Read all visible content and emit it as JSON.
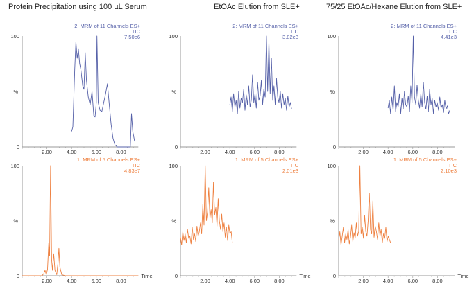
{
  "titles": [
    "Protein Precipitation using 100 µL Serum",
    "EtOAc Elution from SLE+",
    "75/25 EtOAc/Hexane Elution from SLE+"
  ],
  "colors": {
    "top": "#5560a8",
    "bottom": "#ee8040",
    "axis": "#999999"
  },
  "chart_data": [
    {
      "type": "line",
      "column": 0,
      "row": "top",
      "label": "2: MRM of 11 Channels ES+",
      "sub": "TIC",
      "intensity": "7.50e6",
      "ylabel": "%",
      "xlabel": "",
      "yticks": [
        "100",
        "0"
      ],
      "xticks": [
        "2.00",
        "4.00",
        "6.00",
        "8.00"
      ],
      "xlim": [
        0,
        9.4
      ],
      "ylim": [
        0,
        100
      ],
      "points": [
        [
          4.0,
          14
        ],
        [
          4.1,
          18
        ],
        [
          4.25,
          70
        ],
        [
          4.35,
          95
        ],
        [
          4.45,
          80
        ],
        [
          4.55,
          88
        ],
        [
          4.65,
          75
        ],
        [
          4.75,
          70
        ],
        [
          4.9,
          55
        ],
        [
          5.0,
          52
        ],
        [
          5.1,
          85
        ],
        [
          5.2,
          60
        ],
        [
          5.35,
          45
        ],
        [
          5.5,
          38
        ],
        [
          5.65,
          50
        ],
        [
          5.8,
          28
        ],
        [
          5.9,
          27
        ],
        [
          6.0,
          40
        ],
        [
          6.05,
          100
        ],
        [
          6.15,
          40
        ],
        [
          6.3,
          33
        ],
        [
          6.45,
          32
        ],
        [
          6.6,
          40
        ],
        [
          6.75,
          48
        ],
        [
          6.9,
          57
        ],
        [
          7.05,
          38
        ],
        [
          7.2,
          20
        ],
        [
          7.35,
          8
        ],
        [
          7.5,
          2
        ],
        [
          7.7,
          0
        ],
        [
          8.6,
          0
        ],
        [
          8.75,
          0
        ],
        [
          8.85,
          30
        ],
        [
          8.95,
          14
        ],
        [
          9.1,
          5
        ]
      ]
    },
    {
      "type": "line",
      "column": 1,
      "row": "top",
      "label": "2: MRM of 11 Channels ES+",
      "sub": "TIC",
      "intensity": "3.82e3",
      "ylabel": "%",
      "xlabel": "",
      "yticks": [
        "100",
        "0"
      ],
      "xticks": [
        "2.00",
        "4.00",
        "6.00",
        "8.00"
      ],
      "xlim": [
        0,
        9.4
      ],
      "ylim": [
        0,
        100
      ],
      "x_range": [
        4.0,
        9.0
      ],
      "values": [
        38,
        45,
        32,
        48,
        36,
        42,
        30,
        50,
        35,
        44,
        40,
        52,
        33,
        47,
        38,
        55,
        36,
        42,
        65,
        40,
        48,
        35,
        58,
        42,
        46,
        60,
        38,
        52,
        45,
        100,
        50,
        95,
        48,
        80,
        42,
        55,
        38,
        62,
        45,
        40,
        50,
        35,
        48,
        38,
        44,
        33,
        46,
        36,
        40,
        34
      ]
    },
    {
      "type": "line",
      "column": 2,
      "row": "top",
      "label": "2: MRM of 11 Channels ES+",
      "sub": "TIC",
      "intensity": "4.41e3",
      "ylabel": "%",
      "xlabel": "",
      "yticks": [
        "100",
        "0"
      ],
      "xticks": [
        "2.00",
        "4.00",
        "6.00",
        "8.00"
      ],
      "xlim": [
        0,
        9.4
      ],
      "ylim": [
        0,
        100
      ],
      "x_range": [
        4.0,
        9.0
      ],
      "values": [
        35,
        42,
        30,
        45,
        33,
        55,
        32,
        40,
        36,
        48,
        30,
        44,
        34,
        50,
        38,
        36,
        46,
        32,
        55,
        40,
        100,
        45,
        38,
        56,
        42,
        35,
        48,
        36,
        58,
        40,
        34,
        46,
        32,
        52,
        38,
        44,
        30,
        42,
        36,
        40,
        33,
        45,
        35,
        38,
        31,
        42,
        34,
        37,
        30,
        33
      ]
    },
    {
      "type": "line",
      "column": 0,
      "row": "bottom",
      "label": "1: MRM of 5 Channels ES+",
      "sub": "TIC",
      "intensity": "4.83e7",
      "ylabel": "%",
      "xlabel": "Time",
      "yticks": [
        "100",
        "0"
      ],
      "xticks": [
        "2.00",
        "4.00",
        "6.00",
        "8.00"
      ],
      "xlim": [
        0,
        9.4
      ],
      "ylim": [
        0,
        100
      ],
      "points": [
        [
          0,
          0
        ],
        [
          1.6,
          0
        ],
        [
          1.75,
          2
        ],
        [
          1.85,
          5
        ],
        [
          1.95,
          1
        ],
        [
          2.05,
          6
        ],
        [
          2.15,
          30
        ],
        [
          2.22,
          18
        ],
        [
          2.3,
          100
        ],
        [
          2.38,
          15
        ],
        [
          2.45,
          5
        ],
        [
          2.55,
          20
        ],
        [
          2.65,
          5
        ],
        [
          2.8,
          1
        ],
        [
          2.9,
          12
        ],
        [
          2.97,
          25
        ],
        [
          3.05,
          8
        ],
        [
          3.2,
          1
        ],
        [
          3.5,
          0
        ],
        [
          9.4,
          0
        ]
      ]
    },
    {
      "type": "line",
      "column": 1,
      "row": "bottom",
      "label": "1: MRM of 5 Channels ES+",
      "sub": "TIC",
      "intensity": "2.01e3",
      "ylabel": "%",
      "xlabel": "Time",
      "yticks": [
        "100",
        "0"
      ],
      "xticks": [
        "2.00",
        "4.00",
        "6.00",
        "8.00"
      ],
      "xlim": [
        0,
        9.4
      ],
      "ylim": [
        0,
        100
      ],
      "x_range": [
        0.0,
        4.2
      ],
      "values": [
        35,
        28,
        40,
        32,
        38,
        30,
        42,
        34,
        36,
        29,
        44,
        33,
        38,
        31,
        45,
        36,
        40,
        48,
        38,
        65,
        46,
        100,
        50,
        58,
        80,
        52,
        60,
        48,
        85,
        55,
        62,
        45,
        70,
        50,
        42,
        56,
        40,
        48,
        35,
        44,
        32,
        46,
        38,
        40,
        30
      ]
    },
    {
      "type": "line",
      "column": 2,
      "row": "bottom",
      "label": "1: MRM of 5 Channels ES+",
      "sub": "TIC",
      "intensity": "2.10e3",
      "ylabel": "%",
      "xlabel": "Time",
      "yticks": [
        "100",
        "0"
      ],
      "xticks": [
        "2.00",
        "4.00",
        "6.00",
        "8.00"
      ],
      "xlim": [
        0,
        9.4
      ],
      "ylim": [
        0,
        100
      ],
      "x_range": [
        0.0,
        4.2
      ],
      "values": [
        32,
        40,
        28,
        36,
        44,
        30,
        38,
        33,
        42,
        29,
        35,
        46,
        31,
        39,
        34,
        48,
        36,
        40,
        100,
        38,
        44,
        34,
        55,
        40,
        36,
        50,
        75,
        42,
        38,
        68,
        35,
        45,
        40,
        33,
        48,
        36,
        42,
        30,
        38,
        34,
        44,
        31,
        36,
        33,
        30
      ]
    }
  ]
}
